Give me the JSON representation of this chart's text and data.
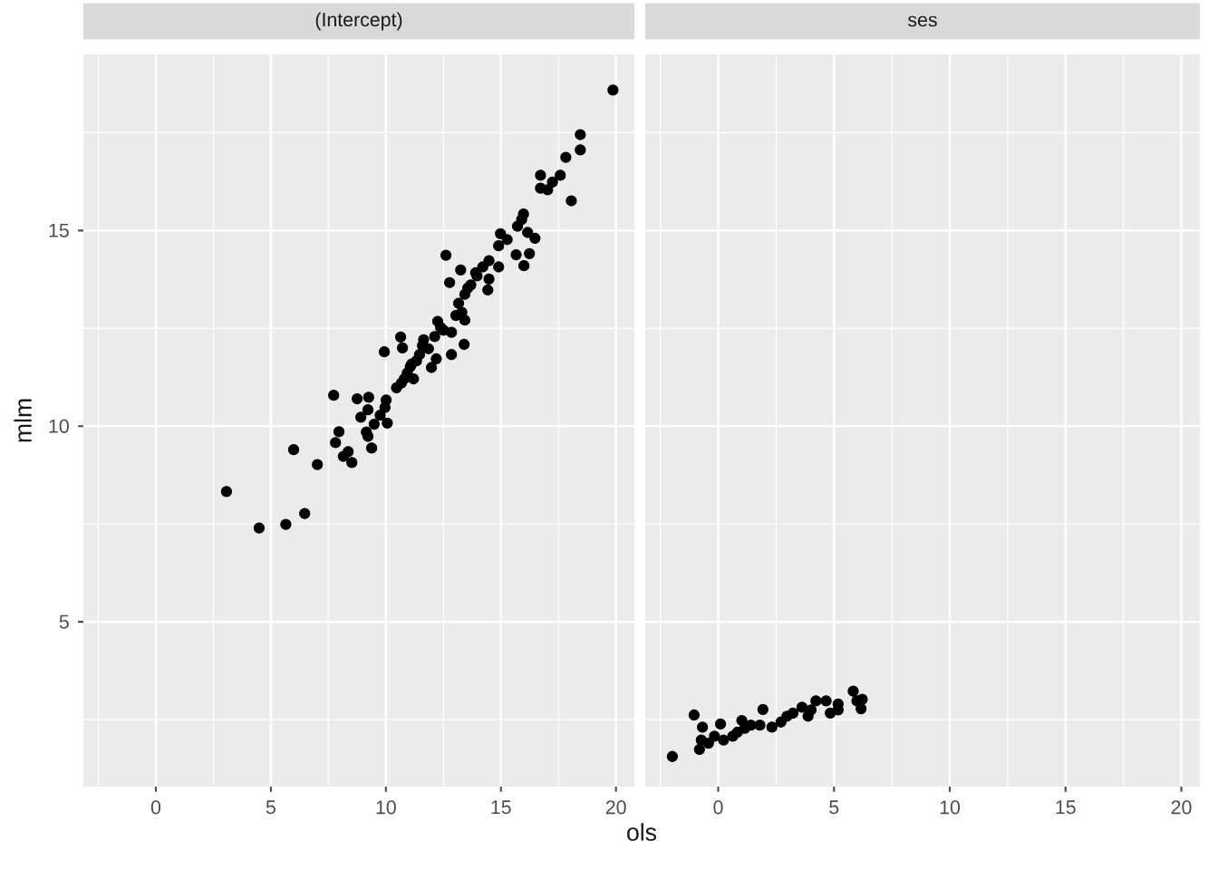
{
  "chart_data": [
    {
      "type": "scatter",
      "title": "(Intercept)",
      "xlabel": "ols",
      "ylabel": "mlm",
      "color": "#000000",
      "marker": "circle",
      "grid": true,
      "x": [
        19.87,
        18.45,
        18.45,
        17.82,
        17.58,
        16.72,
        16.72,
        17.03,
        17.24,
        18.06,
        15.98,
        15.9,
        15.72,
        16.16,
        16.48,
        14.98,
        14.9,
        15.27,
        15.66,
        16.24,
        16.0,
        12.61,
        13.25,
        14.48,
        14.21,
        13.9,
        14.9,
        14.48,
        14.43,
        12.77,
        13.69,
        13.43,
        13.16,
        13.3,
        13.04,
        13.43,
        12.25,
        12.51,
        12.85,
        12.12,
        11.64,
        11.85,
        11.46,
        13.4,
        12.85,
        12.19,
        11.98,
        11.12,
        10.93,
        11.2,
        10.67,
        10.46,
        10.64,
        10.72,
        9.93,
        10.01,
        9.96,
        9.75,
        10.06,
        9.49,
        9.22,
        9.25,
        8.75,
        8.91,
        9.15,
        9.22,
        9.38,
        7.73,
        7.96,
        7.81,
        8.36,
        8.15,
        8.52,
        5.99,
        7.02,
        3.07,
        4.49,
        5.65,
        6.47,
        13.96,
        13.56,
        12.38,
        11.33,
        11.06,
        11.59,
        10.8
      ],
      "values": [
        18.59,
        17.45,
        17.06,
        16.87,
        16.41,
        16.41,
        16.08,
        16.04,
        16.24,
        15.76,
        15.42,
        15.28,
        15.11,
        14.95,
        14.8,
        14.92,
        14.61,
        14.77,
        14.38,
        14.41,
        14.1,
        14.37,
        13.99,
        14.23,
        14.07,
        13.92,
        14.07,
        13.76,
        13.48,
        13.67,
        13.61,
        13.37,
        13.14,
        12.91,
        12.83,
        12.71,
        12.68,
        12.45,
        12.4,
        12.29,
        12.21,
        11.98,
        11.83,
        12.09,
        11.83,
        11.72,
        11.5,
        11.59,
        11.36,
        11.21,
        11.1,
        10.98,
        12.28,
        12.0,
        11.9,
        10.67,
        10.48,
        10.28,
        10.08,
        10.05,
        10.42,
        10.74,
        10.7,
        10.23,
        9.85,
        9.74,
        9.44,
        10.79,
        9.86,
        9.58,
        9.35,
        9.23,
        9.07,
        9.4,
        9.02,
        8.33,
        7.4,
        7.49,
        7.77,
        13.84,
        13.53,
        12.52,
        11.67,
        11.52,
        12.06,
        11.21
      ],
      "xlim": [
        -3.15,
        20.8
      ],
      "ylim": [
        0.79,
        19.5
      ],
      "xticks": [
        0,
        5,
        10,
        15,
        20
      ],
      "yticks": [
        5,
        10,
        15
      ]
    },
    {
      "type": "scatter",
      "title": "ses",
      "color": "#000000",
      "marker": "circle",
      "grid": true,
      "tick_labels": "x",
      "x": [
        -1.98,
        -1.04,
        -0.68,
        -0.81,
        -0.73,
        -0.42,
        0.1,
        0.23,
        0.63,
        1.02,
        0.83,
        1.41,
        1.93,
        1.8,
        2.32,
        2.58,
        2.97,
        3.23,
        3.62,
        3.88,
        4.01,
        4.22,
        4.66,
        4.84,
        5.18,
        5.18,
        5.83,
        6.22,
        5.99,
        6.17,
        -0.16,
        2.71,
        1.15
      ],
      "values": [
        1.56,
        2.62,
        2.31,
        1.74,
        1.98,
        1.9,
        2.39,
        1.98,
        2.08,
        2.48,
        2.18,
        2.36,
        2.76,
        2.36,
        2.31,
        null,
        2.59,
        2.67,
        2.82,
        2.59,
        2.75,
        2.98,
        2.98,
        2.67,
        2.9,
        2.75,
        3.23,
        3.02,
        2.98,
        2.78,
        2.08,
        2.44,
        2.28
      ],
      "xlim": [
        -3.15,
        20.8
      ],
      "ylim": [
        0.79,
        19.5
      ],
      "xticks": [
        0,
        5,
        10,
        15,
        20
      ],
      "yticks": [
        5,
        10,
        15
      ]
    }
  ]
}
